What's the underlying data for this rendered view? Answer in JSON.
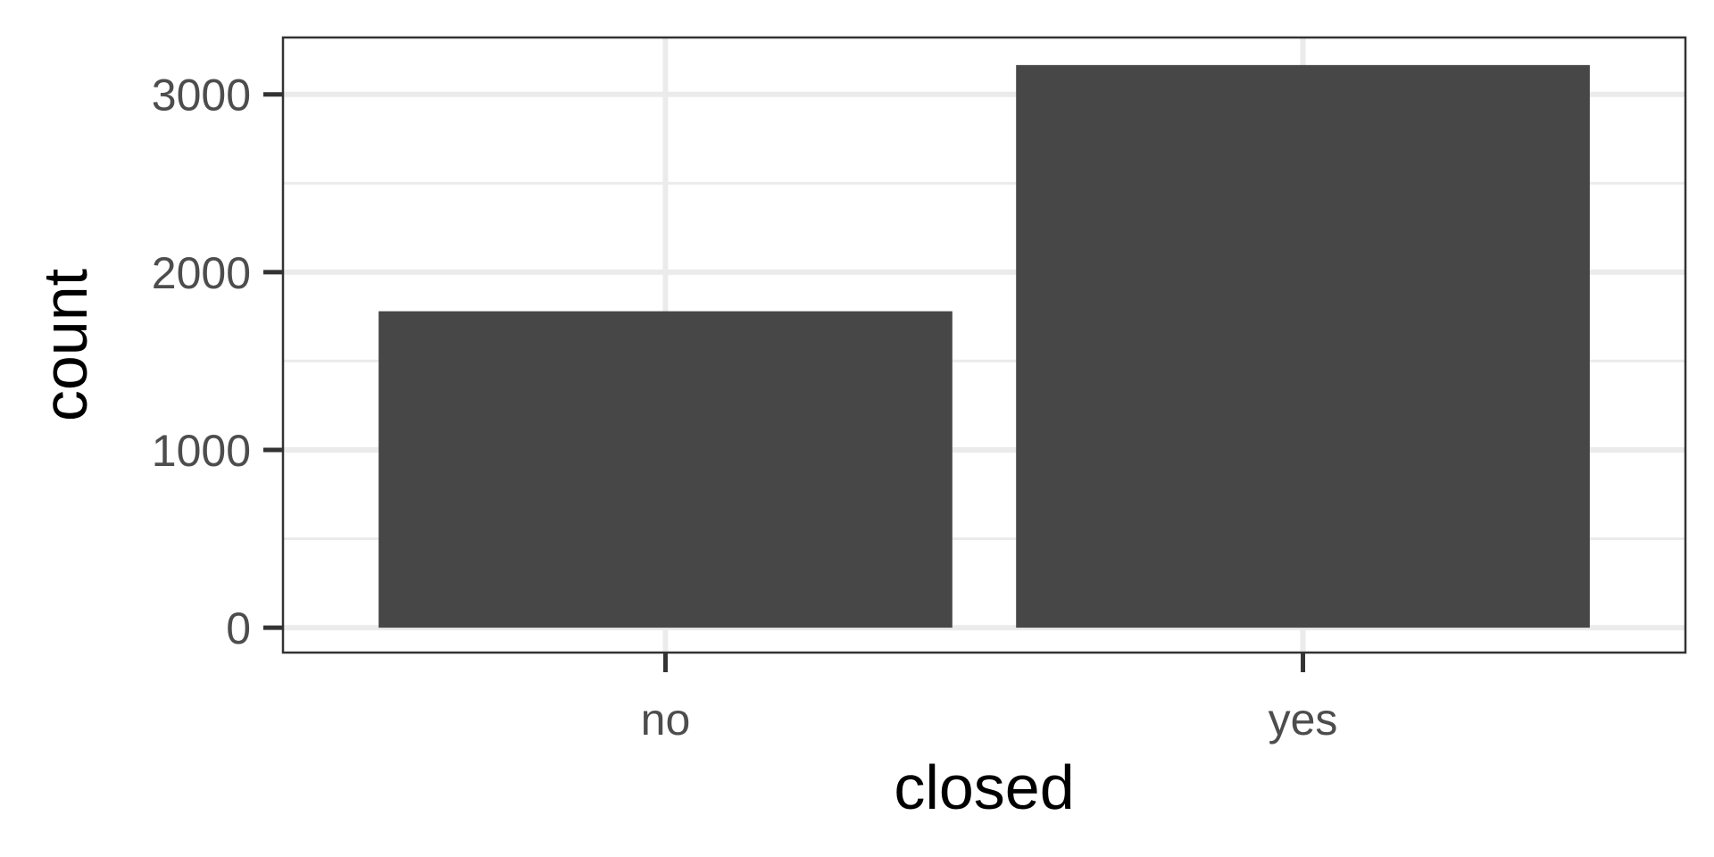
{
  "chart_data": {
    "type": "bar",
    "categories": [
      "no",
      "yes"
    ],
    "values": [
      1780,
      3165
    ],
    "xlabel": "closed",
    "ylabel": "count",
    "ylim": [
      -140,
      3320
    ],
    "yticks": [
      0,
      1000,
      2000,
      3000
    ],
    "yticks_minor": [
      500,
      1500,
      2500
    ],
    "grid": true,
    "colors": {
      "bar": "#474747",
      "grid": "#ebebeb",
      "panel_border": "#333333",
      "tick": "#333333",
      "tick_label": "#4d4d4d"
    }
  }
}
